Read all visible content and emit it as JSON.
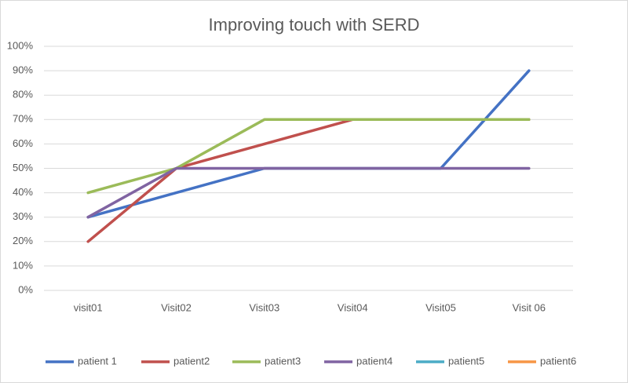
{
  "chart_data": {
    "type": "line",
    "title": "Improving touch with SERD",
    "categories": [
      "visit01",
      "Visit02",
      "Visit03",
      "Visit04",
      "Visit05",
      "Visit 06"
    ],
    "series": [
      {
        "name": "patient 1",
        "color": "#4472c4",
        "values": [
          30,
          40,
          50,
          50,
          50,
          90
        ]
      },
      {
        "name": "patient2",
        "color": "#c0504d",
        "values": [
          20,
          50,
          60,
          70,
          70,
          70
        ]
      },
      {
        "name": "patient3",
        "color": "#9bbb59",
        "values": [
          40,
          50,
          70,
          70,
          70,
          70
        ]
      },
      {
        "name": "patient4",
        "color": "#8064a2",
        "values": [
          30,
          50,
          50,
          50,
          50,
          50
        ]
      },
      {
        "name": "patient5",
        "color": "#4bacc6",
        "values": [
          null,
          null,
          null,
          null,
          null,
          null
        ]
      },
      {
        "name": "patient6",
        "color": "#f79646",
        "values": [
          null,
          null,
          null,
          null,
          null,
          null
        ]
      }
    ],
    "ylim": [
      0,
      100
    ],
    "yticks": [
      {
        "value": 0,
        "label": "0%"
      },
      {
        "value": 10,
        "label": "10%"
      },
      {
        "value": 20,
        "label": "20%"
      },
      {
        "value": 30,
        "label": "30%"
      },
      {
        "value": 40,
        "label": "40%"
      },
      {
        "value": 50,
        "label": "50%"
      },
      {
        "value": 60,
        "label": "60%"
      },
      {
        "value": 70,
        "label": "70%"
      },
      {
        "value": 80,
        "label": "80%"
      },
      {
        "value": 90,
        "label": "90%"
      },
      {
        "value": 100,
        "label": "100%"
      }
    ],
    "grid": true,
    "legend": "bottom"
  }
}
